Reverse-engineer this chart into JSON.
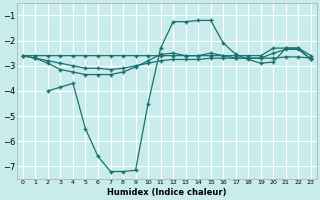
{
  "xlabel": "Humidex (Indice chaleur)",
  "bg_color": "#c8ecec",
  "grid_color": "#ffffff",
  "line_color": "#1a7070",
  "xlim": [
    -0.5,
    23.5
  ],
  "ylim": [
    -7.5,
    -0.5
  ],
  "yticks": [
    -7,
    -6,
    -5,
    -4,
    -3,
    -2,
    -1
  ],
  "xticks": [
    0,
    1,
    2,
    3,
    4,
    5,
    6,
    7,
    8,
    9,
    10,
    11,
    12,
    13,
    14,
    15,
    16,
    17,
    18,
    19,
    20,
    21,
    22,
    23
  ],
  "line1_x": [
    0,
    1,
    2,
    3,
    4,
    5,
    6,
    7,
    8,
    9,
    10,
    11,
    12,
    13,
    14,
    15,
    16,
    17,
    18,
    19,
    20,
    21,
    22,
    23
  ],
  "line1_y": [
    -2.6,
    -2.6,
    -2.6,
    -2.6,
    -2.6,
    -2.6,
    -2.6,
    -2.6,
    -2.6,
    -2.6,
    -2.6,
    -2.6,
    -2.6,
    -2.6,
    -2.6,
    -2.6,
    -2.6,
    -2.6,
    -2.6,
    -2.6,
    -2.3,
    -2.3,
    -2.3,
    -2.6
  ],
  "line2_x": [
    0,
    1,
    2,
    3,
    4,
    5,
    6,
    7,
    8,
    9,
    10,
    11,
    12,
    13,
    14,
    15,
    16,
    17,
    18,
    19,
    20,
    21,
    22,
    23
  ],
  "line2_y": [
    -2.6,
    -2.7,
    -2.8,
    -2.9,
    -3.0,
    -3.1,
    -3.1,
    -3.15,
    -3.1,
    -3.0,
    -2.9,
    -2.8,
    -2.75,
    -2.75,
    -2.75,
    -2.7,
    -2.7,
    -2.7,
    -2.7,
    -2.7,
    -2.7,
    -2.65,
    -2.65,
    -2.7
  ],
  "line3_x": [
    0,
    1,
    2,
    3,
    4,
    5,
    6,
    7,
    8,
    9,
    10,
    11,
    12,
    13,
    14,
    15,
    16,
    17,
    18,
    19,
    20,
    21,
    22,
    23
  ],
  "line3_y": [
    -2.6,
    -2.7,
    -2.9,
    -3.15,
    -3.25,
    -3.35,
    -3.35,
    -3.35,
    -3.25,
    -3.05,
    -2.8,
    -2.55,
    -2.5,
    -2.6,
    -2.6,
    -2.5,
    -2.6,
    -2.7,
    -2.7,
    -2.7,
    -2.5,
    -2.35,
    -2.35,
    -2.75
  ],
  "line4_x": [
    2,
    3,
    4,
    5,
    6,
    7,
    8,
    9,
    10,
    11,
    12,
    13,
    14,
    15,
    16,
    17,
    18,
    19,
    20,
    21,
    22,
    23
  ],
  "line4_y": [
    -4.0,
    -3.85,
    -3.7,
    -5.5,
    -6.6,
    -7.2,
    -7.2,
    -7.15,
    -4.5,
    -2.3,
    -1.25,
    -1.25,
    -1.2,
    -1.2,
    -2.1,
    -2.55,
    -2.75,
    -2.9,
    -2.85,
    -2.3,
    -2.3,
    -2.75
  ]
}
